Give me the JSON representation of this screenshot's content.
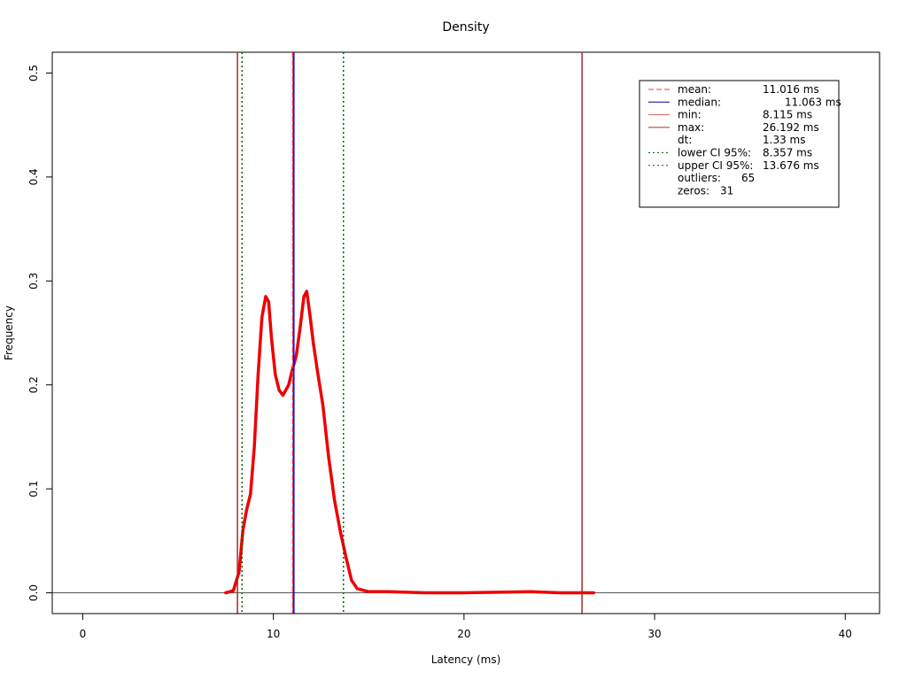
{
  "chart_data": {
    "type": "line",
    "title": "Density",
    "xlabel": "Latency (ms)",
    "ylabel": "Frequency",
    "xlim": [
      -1.6,
      41.8
    ],
    "ylim": [
      -0.02,
      0.52
    ],
    "x_ticks": [
      0,
      10,
      20,
      30,
      40
    ],
    "y_ticks": [
      0.0,
      0.1,
      0.2,
      0.3,
      0.4,
      0.5
    ],
    "x_tick_labels": [
      "0",
      "10",
      "20",
      "30",
      "40"
    ],
    "y_tick_labels": [
      "0.0",
      "0.1",
      "0.2",
      "0.3",
      "0.4",
      "0.5"
    ],
    "grid": false,
    "legend_position": "top-right",
    "series": [
      {
        "color": "#ee0000",
        "x": [
          7.5,
          7.9,
          8.2,
          8.4,
          8.6,
          8.8,
          9.0,
          9.2,
          9.4,
          9.6,
          9.75,
          9.9,
          10.1,
          10.3,
          10.5,
          10.8,
          11.0,
          11.2,
          11.4,
          11.6,
          11.75,
          11.9,
          12.1,
          12.3,
          12.6,
          12.9,
          13.2,
          13.5,
          13.8,
          14.1,
          14.4,
          15.0,
          16.0,
          18.0,
          20.0,
          23.5,
          25.0,
          26.8
        ],
        "y": [
          0.0,
          0.002,
          0.02,
          0.06,
          0.08,
          0.095,
          0.14,
          0.21,
          0.265,
          0.285,
          0.28,
          0.245,
          0.21,
          0.195,
          0.19,
          0.2,
          0.215,
          0.228,
          0.255,
          0.285,
          0.29,
          0.27,
          0.24,
          0.215,
          0.18,
          0.13,
          0.09,
          0.06,
          0.035,
          0.012,
          0.004,
          0.001,
          0.001,
          0.0,
          0.0,
          0.001,
          0.0,
          0.0
        ]
      }
    ],
    "reference_lines": [
      {
        "id": "min",
        "x": 8.115,
        "color": "#a52a2a",
        "style": "solid"
      },
      {
        "id": "lower_ci",
        "x": 8.357,
        "color": "#006400",
        "style": "dotted"
      },
      {
        "id": "median",
        "x": 11.063,
        "color": "#0000ff",
        "style": "solid"
      },
      {
        "id": "mean",
        "x": 11.016,
        "color": "#ff3030",
        "style": "dashed"
      },
      {
        "id": "upper_ci",
        "x": 13.676,
        "color": "#006400",
        "style": "dotted"
      },
      {
        "id": "max",
        "x": 26.192,
        "color": "#a52a2a",
        "style": "solid"
      }
    ],
    "baseline": {
      "y": 0.0,
      "color": "#555555"
    },
    "legend": {
      "entries": [
        {
          "label": "mean:",
          "value": "11.016 ms",
          "color": "#ff3030",
          "style": "dashed"
        },
        {
          "label": "median:",
          "value": "11.063 ms",
          "color": "#00008b",
          "style": "solid",
          "offset": true
        },
        {
          "label": "min:",
          "value": "8.115 ms",
          "color": "#cd5c5c",
          "style": "solid"
        },
        {
          "label": "max:",
          "value": "26.192 ms",
          "color": "#a52a2a",
          "style": "solid"
        },
        {
          "label": "dt:",
          "value": "1.33 ms",
          "color": "",
          "style": "none"
        },
        {
          "label": "lower CI 95%:",
          "value": "8.357 ms",
          "color": "#006400",
          "style": "dotted"
        },
        {
          "label": "upper CI 95%:",
          "value": "13.676 ms",
          "color": "#006400",
          "style": "dotted"
        },
        {
          "label": "outliers:",
          "value": "65",
          "color": "",
          "style": "none",
          "inline": true
        },
        {
          "label": "zeros:",
          "value": "31",
          "color": "",
          "style": "none",
          "inline": true
        }
      ]
    }
  }
}
